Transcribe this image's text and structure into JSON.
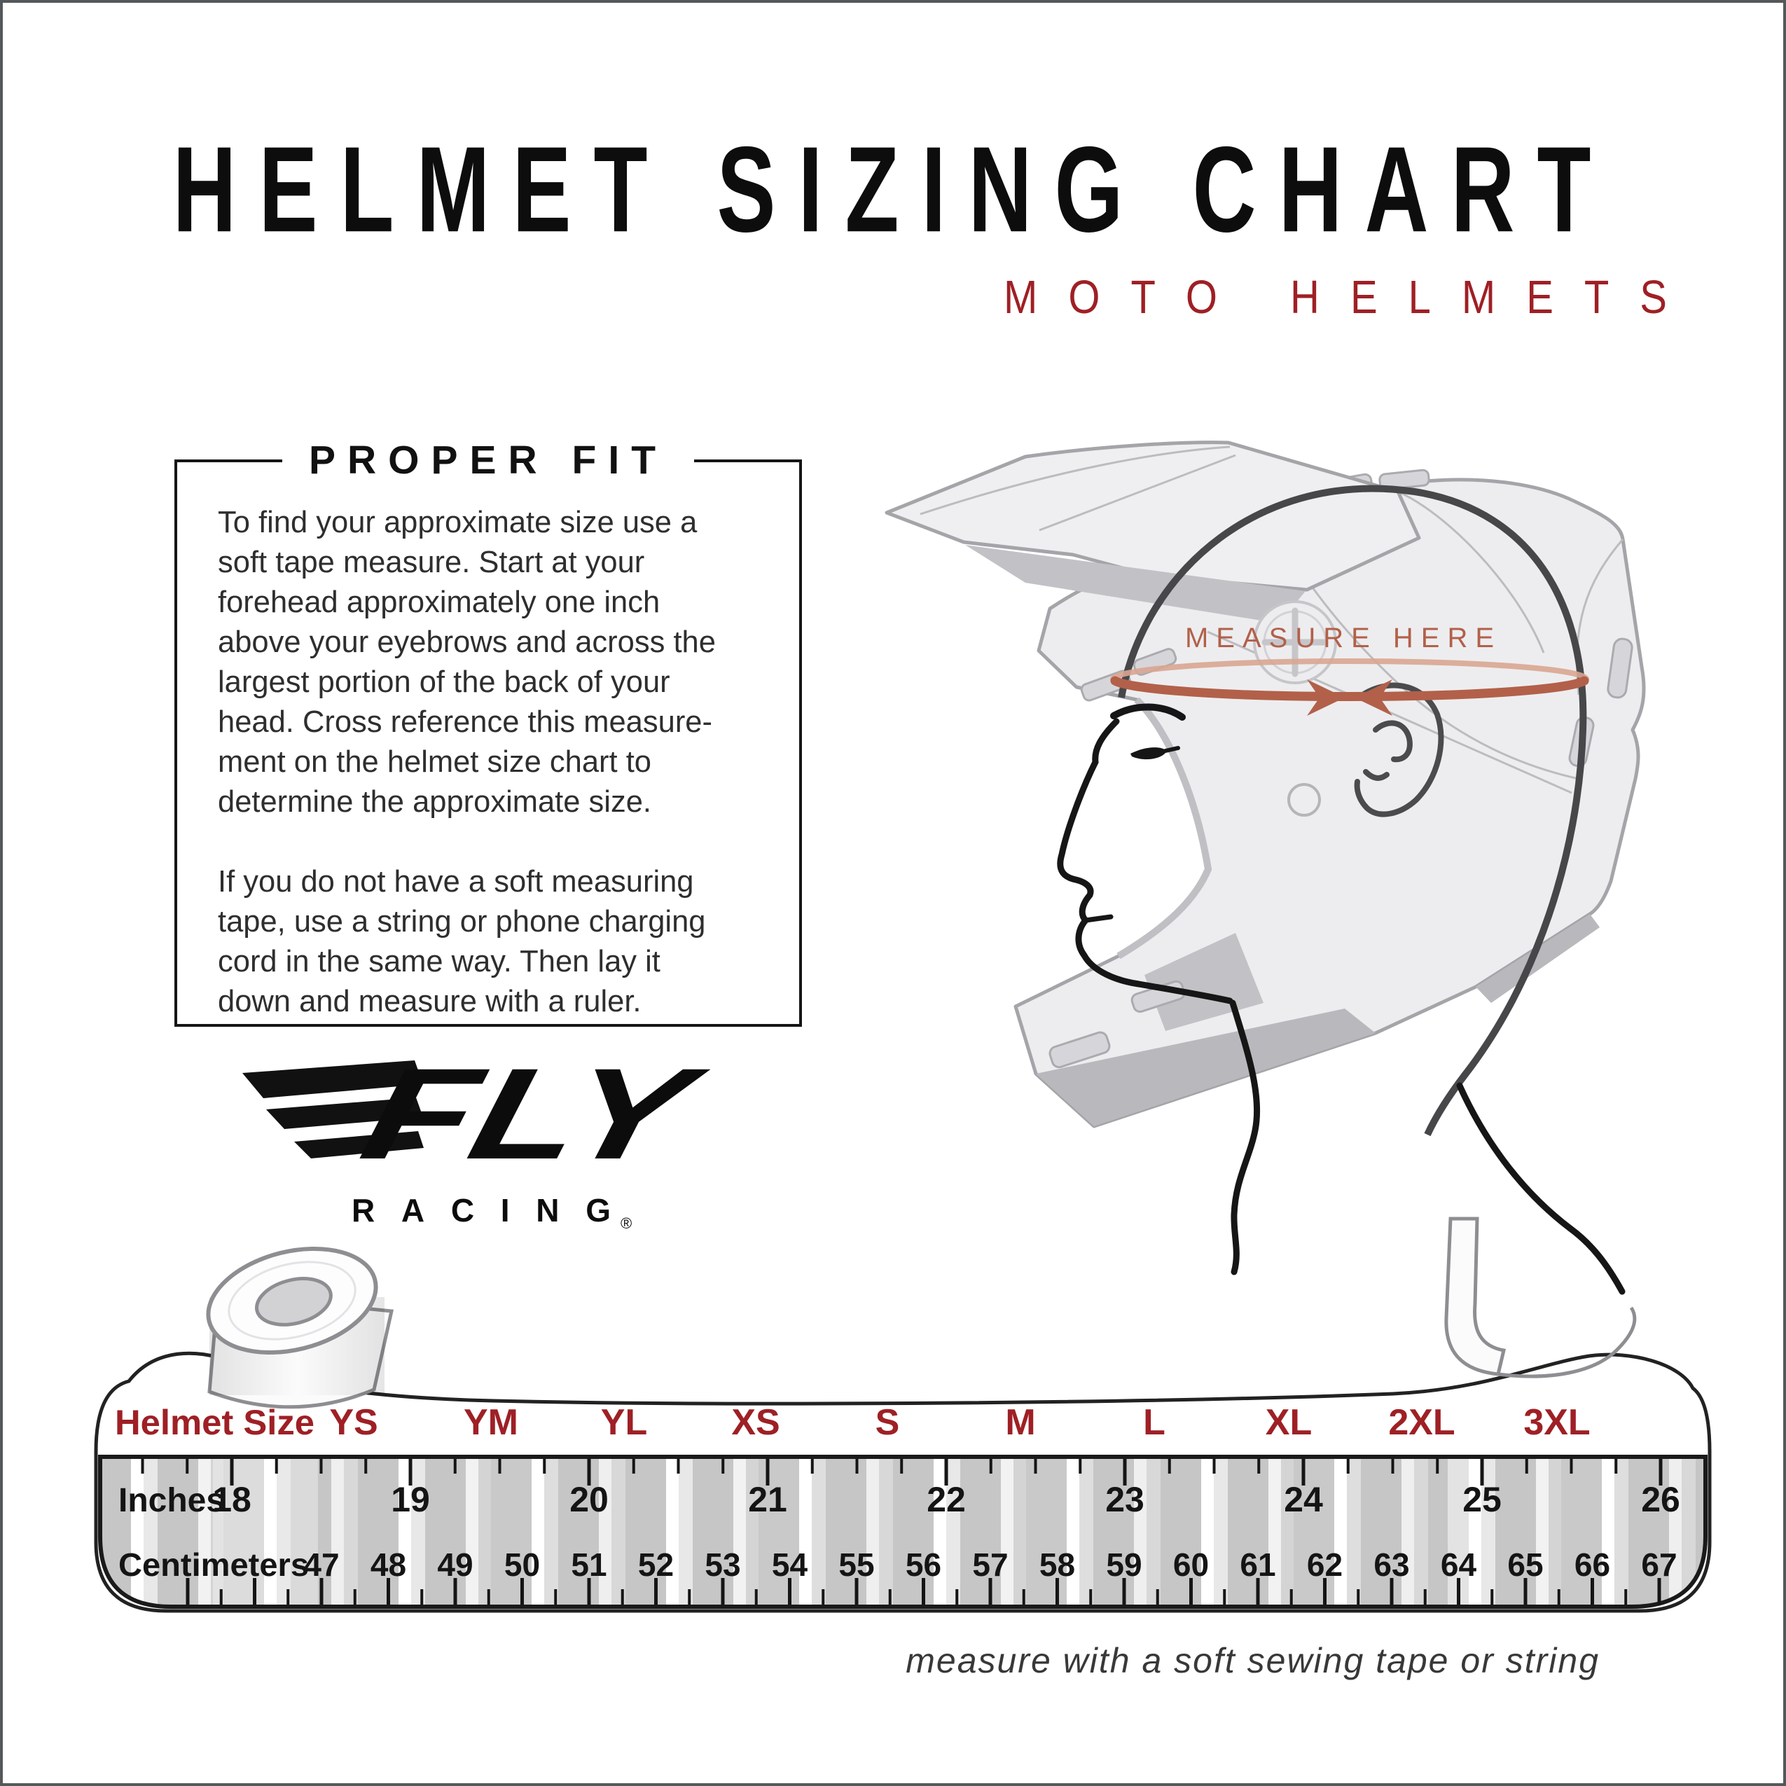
{
  "page": {
    "title": "HELMET SIZING CHART",
    "subtitle": "MOTO HELMETS"
  },
  "proper_fit": {
    "heading": "PROPER FIT",
    "para1": "To find your approximate size use a\nsoft tape measure. Start at your\nforehead approximately one inch\nabove your eyebrows and across the\nlargest portion of the back of your\nhead. Cross reference this measure-\nment on the helmet size chart to\ndetermine the approximate size.",
    "para2": "If you do not have a soft measuring\ntape, use a string or phone charging\ncord in the same way. Then lay it\ndown and measure with a ruler."
  },
  "logo": {
    "brand": "FLY",
    "sub": "RACING",
    "registered": "®"
  },
  "illustration": {
    "measure_here": "MEASURE HERE"
  },
  "tape": {
    "size_row_label": "Helmet Size",
    "sizes": [
      "YS",
      "YM",
      "YL",
      "XS",
      "S",
      "M",
      "L",
      "XL",
      "2XL",
      "3XL"
    ],
    "inches_label": "Inches",
    "inches": [
      18,
      19,
      20,
      21,
      22,
      23,
      24,
      25,
      26
    ],
    "cm_label": "Centimeters",
    "cm": [
      47,
      48,
      49,
      50,
      51,
      52,
      53,
      54,
      55,
      56,
      57,
      58,
      59,
      60,
      61,
      62,
      63,
      64,
      65,
      66,
      67
    ],
    "caption": "measure with a soft sewing tape or string"
  },
  "colors": {
    "accent_red": "#9E2025",
    "terracotta": "#B2604A",
    "terracotta_light": "#D9A591",
    "ink": "#141414"
  }
}
